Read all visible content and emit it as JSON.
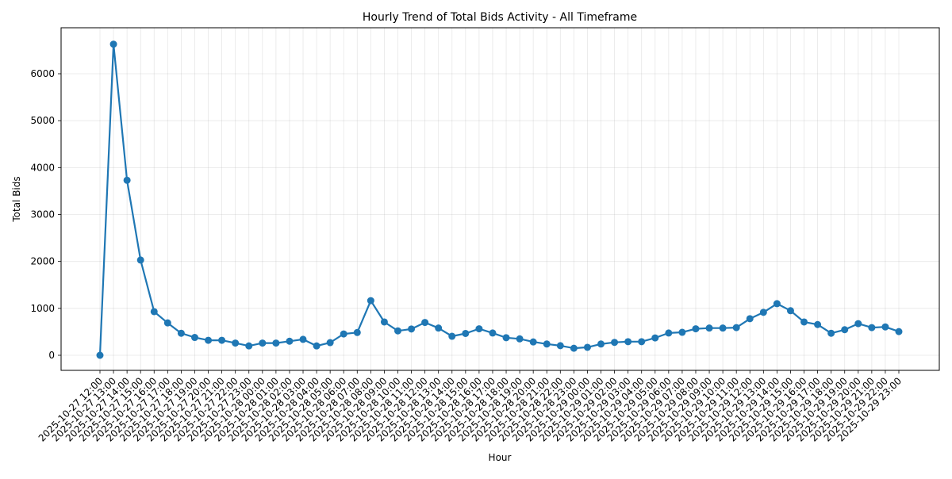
{
  "chart_data": {
    "type": "line",
    "title": "Hourly Trend of Total Bids Activity - All Timeframe",
    "xlabel": "Hour",
    "ylabel": "Total Bids",
    "ylim": [
      -330,
      6950
    ],
    "yticks": [
      0,
      1000,
      2000,
      3000,
      4000,
      5000,
      6000
    ],
    "grid": true,
    "legend": null,
    "line_color": "#1f77b4",
    "marker": "circle",
    "x": [
      "2025-10-27 12:00",
      "2025-10-27 13:00",
      "2025-10-27 14:00",
      "2025-10-27 15:00",
      "2025-10-27 16:00",
      "2025-10-27 17:00",
      "2025-10-27 18:00",
      "2025-10-27 19:00",
      "2025-10-27 20:00",
      "2025-10-27 21:00",
      "2025-10-27 22:00",
      "2025-10-27 23:00",
      "2025-10-28 00:00",
      "2025-10-28 01:00",
      "2025-10-28 02:00",
      "2025-10-28 03:00",
      "2025-10-28 04:00",
      "2025-10-28 05:00",
      "2025-10-28 06:00",
      "2025-10-28 07:00",
      "2025-10-28 08:00",
      "2025-10-28 09:00",
      "2025-10-28 10:00",
      "2025-10-28 11:00",
      "2025-10-28 12:00",
      "2025-10-28 13:00",
      "2025-10-28 14:00",
      "2025-10-28 15:00",
      "2025-10-28 16:00",
      "2025-10-28 17:00",
      "2025-10-28 18:00",
      "2025-10-28 19:00",
      "2025-10-28 20:00",
      "2025-10-28 21:00",
      "2025-10-28 22:00",
      "2025-10-28 23:00",
      "2025-10-29 00:00",
      "2025-10-29 01:00",
      "2025-10-29 02:00",
      "2025-10-29 03:00",
      "2025-10-29 04:00",
      "2025-10-29 05:00",
      "2025-10-29 06:00",
      "2025-10-29 07:00",
      "2025-10-29 08:00",
      "2025-10-29 09:00",
      "2025-10-29 10:00",
      "2025-10-29 11:00",
      "2025-10-29 12:00",
      "2025-10-29 13:00",
      "2025-10-29 14:00",
      "2025-10-29 15:00",
      "2025-10-29 16:00",
      "2025-10-29 17:00",
      "2025-10-29 18:00",
      "2025-10-29 19:00",
      "2025-10-29 20:00",
      "2025-10-29 21:00",
      "2025-10-29 22:00",
      "2025-10-29 23:00"
    ],
    "series": [
      {
        "name": "Total Bids",
        "values": [
          0,
          6630,
          3730,
          2030,
          930,
          690,
          470,
          380,
          320,
          320,
          260,
          200,
          260,
          260,
          300,
          340,
          200,
          270,
          455,
          485,
          1165,
          710,
          520,
          560,
          700,
          580,
          405,
          465,
          565,
          475,
          375,
          350,
          285,
          240,
          205,
          150,
          170,
          240,
          275,
          290,
          290,
          370,
          475,
          490,
          565,
          580,
          580,
          590,
          780,
          915,
          1100,
          950,
          710,
          655,
          470,
          545,
          675,
          590,
          605,
          505
        ]
      }
    ]
  }
}
